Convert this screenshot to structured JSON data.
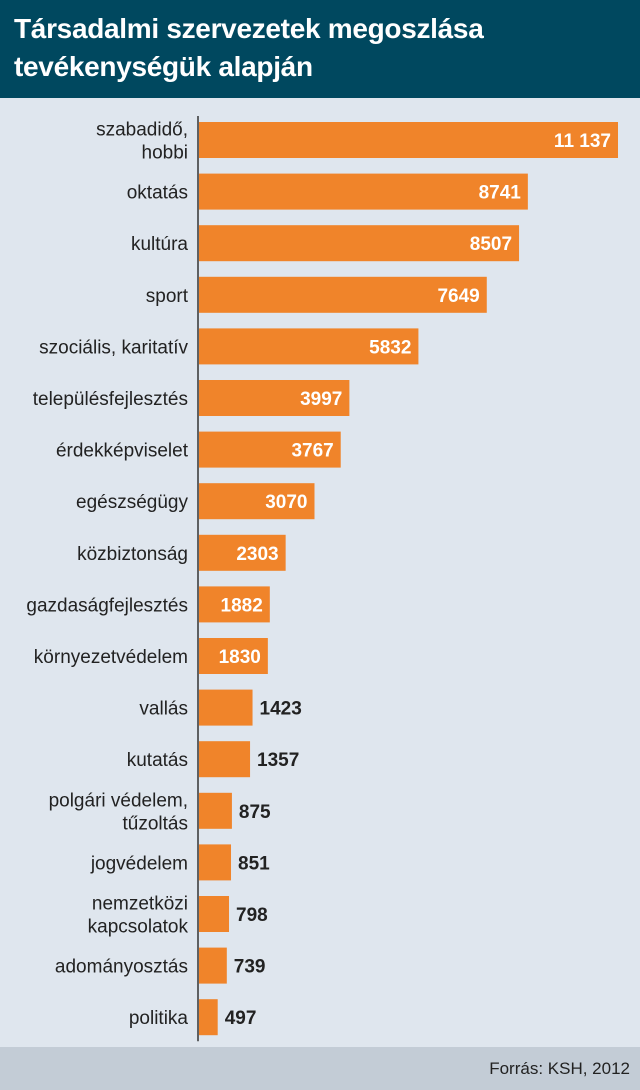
{
  "header": {
    "title_line1": "Társadalmi szervezetek megoszlása",
    "title_line2": "tevékenységük alapján"
  },
  "footer": {
    "source": "Forrás: KSH, 2012"
  },
  "colors": {
    "bar": "#f0842a",
    "header_bg": "#00485f",
    "background": "#dfe6ee",
    "footer_bg": "#c3ccd6"
  },
  "chart_data": {
    "type": "bar",
    "orientation": "horizontal",
    "title": "Társadalmi szervezetek megoszlása tevékenységük alapján",
    "categories": [
      [
        "szabadidő,",
        "hobbi"
      ],
      [
        "oktatás"
      ],
      [
        "kultúra"
      ],
      [
        "sport"
      ],
      [
        "szociális, karitatív"
      ],
      [
        "településfejlesztés"
      ],
      [
        "érdekképviselet"
      ],
      [
        "egészségügy"
      ],
      [
        "közbiztonság"
      ],
      [
        "gazdaságfejlesztés"
      ],
      [
        "környezetvédelem"
      ],
      [
        "vallás"
      ],
      [
        "kutatás"
      ],
      [
        "polgári védelem,",
        "tűzoltás"
      ],
      [
        "jogvédelem"
      ],
      [
        "nemzetközi",
        "kapcsolatok"
      ],
      [
        "adományosztás"
      ],
      [
        "politika"
      ]
    ],
    "values": [
      11137,
      8741,
      8507,
      7649,
      5832,
      3997,
      3767,
      3070,
      2303,
      1882,
      1830,
      1423,
      1357,
      875,
      851,
      798,
      739,
      497
    ],
    "value_labels": [
      "11 137",
      "8741",
      "8507",
      "7649",
      "5832",
      "3997",
      "3767",
      "3070",
      "2303",
      "1882",
      "1830",
      "1423",
      "1357",
      "875",
      "851",
      "798",
      "739",
      "497"
    ],
    "xlim": [
      0,
      11137
    ],
    "grid": false,
    "legend": "none"
  }
}
